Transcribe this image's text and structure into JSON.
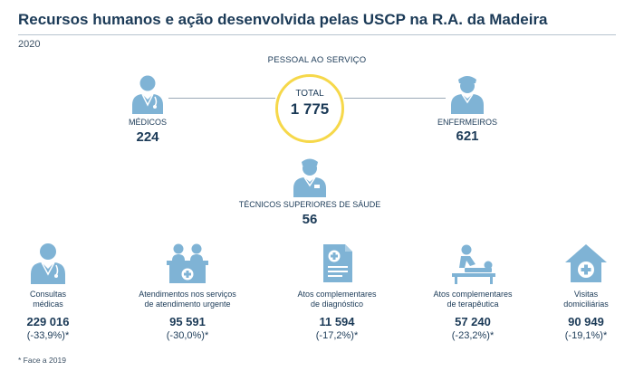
{
  "title": "Recursos humanos e ação desenvolvida pelas USCP na R.A. da Madeira",
  "year": "2020",
  "staff": {
    "heading": "PESSOAL AO SERVIÇO",
    "total_label": "TOTAL",
    "total_value": "1 775",
    "doctors": {
      "label": "MÉDICOS",
      "value": "224",
      "icon": "doctor-icon"
    },
    "nurses": {
      "label": "ENFERMEIROS",
      "value": "621",
      "icon": "nurse-icon"
    },
    "technicians": {
      "label": "TÉCNICOS SUPERIORES DE SÁUDE",
      "value": "56",
      "icon": "technician-icon"
    }
  },
  "indicators": [
    {
      "label_line1": "Consultas",
      "label_line2": "médicas",
      "value": "229 016",
      "change": "(-33,9%)*",
      "icon": "doctor-icon"
    },
    {
      "label_line1": "Atendimentos nos serviços",
      "label_line2": "de atendimento urgente",
      "value": "95 591",
      "change": "(-30,0%)*",
      "icon": "reception-desk-icon"
    },
    {
      "label_line1": "Atos complementares",
      "label_line2": "de diagnóstico",
      "value": "11 594",
      "change": "(-17,2%)*",
      "icon": "medical-report-icon"
    },
    {
      "label_line1": "Atos complementares",
      "label_line2": "de terapêutica",
      "value": "57 240",
      "change": "(-23,2%)*",
      "icon": "therapy-icon"
    },
    {
      "label_line1": "Visitas",
      "label_line2": "domiciliárias",
      "value": "90 949",
      "change": "(-19,1%)*",
      "icon": "home-visit-icon"
    }
  ],
  "footnote": "* Face a 2019",
  "colors": {
    "icon_fill": "#7fb3d5",
    "text": "#1b3a57",
    "circle_border": "#f6d84a"
  }
}
